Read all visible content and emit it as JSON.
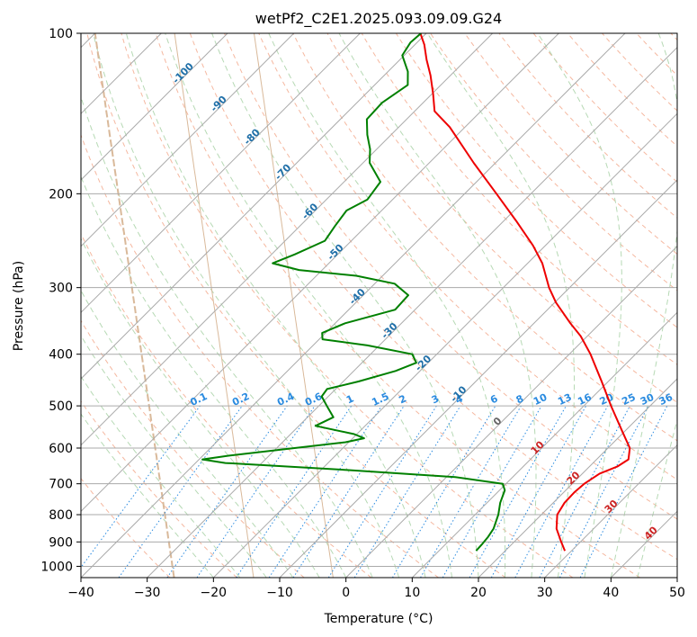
{
  "chart_data": {
    "type": "line",
    "subtype": "skew-t log-p diagram",
    "title": "wetPf2_C2E1.2025.093.09.09.G24",
    "xlabel": "Temperature (°C)",
    "ylabel": "Pressure (hPa)",
    "xlim": [
      -40,
      50
    ],
    "ylim": [
      1050,
      100
    ],
    "y_scale": "log",
    "x_ticks": [
      "−40",
      "−30",
      "−20",
      "−10",
      "0",
      "10",
      "20",
      "30",
      "40",
      "50"
    ],
    "x_tick_values": [
      -40,
      -30,
      -20,
      -10,
      0,
      10,
      20,
      30,
      40,
      50
    ],
    "y_ticks": [
      "100",
      "200",
      "300",
      "400",
      "500",
      "600",
      "700",
      "800",
      "900",
      "1000"
    ],
    "y_tick_values": [
      100,
      200,
      300,
      400,
      500,
      600,
      700,
      800,
      900,
      1000
    ],
    "grid": true,
    "colors": {
      "temperature": "#ee0000",
      "dewpoint": "#008000",
      "isotherm": "#aaaaaa",
      "dry_adiabat": "#f5b8a0",
      "moist_adiabat": "#b6d9b4",
      "mixing_ratio": "#2a8be0",
      "saturation_curve": "#d9b99a",
      "cold_isotherm_label": "#1f6fa8",
      "warm_isotherm_label": "#cc2222"
    },
    "series": [
      {
        "role": "temperature",
        "points": [
          {
            "p": 935,
            "t": 29
          },
          {
            "p": 900,
            "t": 27.1
          },
          {
            "p": 850,
            "t": 24.4
          },
          {
            "p": 800,
            "t": 22.4
          },
          {
            "p": 760,
            "t": 21.7
          },
          {
            "p": 725,
            "t": 21.6
          },
          {
            "p": 700,
            "t": 21.8
          },
          {
            "p": 670,
            "t": 22.6
          },
          {
            "p": 650,
            "t": 24.2
          },
          {
            "p": 630,
            "t": 24.8
          },
          {
            "p": 600,
            "t": 23.3
          },
          {
            "p": 560,
            "t": 19.8
          },
          {
            "p": 500,
            "t": 14.1
          },
          {
            "p": 450,
            "t": 9.0
          },
          {
            "p": 400,
            "t": 3.2
          },
          {
            "p": 370,
            "t": -1.0
          },
          {
            "p": 350,
            "t": -4.5
          },
          {
            "p": 320,
            "t": -9.8
          },
          {
            "p": 300,
            "t": -13.1
          },
          {
            "p": 270,
            "t": -17.8
          },
          {
            "p": 250,
            "t": -21.9
          },
          {
            "p": 225,
            "t": -28.1
          },
          {
            "p": 200,
            "t": -35.2
          },
          {
            "p": 175,
            "t": -43.3
          },
          {
            "p": 150,
            "t": -52.3
          },
          {
            "p": 140,
            "t": -57.0
          },
          {
            "p": 130,
            "t": -59.8
          },
          {
            "p": 120,
            "t": -63.0
          },
          {
            "p": 112,
            "t": -66.0
          },
          {
            "p": 105,
            "t": -68.6
          },
          {
            "p": 100,
            "t": -70.9
          }
        ]
      },
      {
        "role": "dewpoint",
        "points": [
          {
            "p": 935,
            "t": 15.6
          },
          {
            "p": 910,
            "t": 15.5
          },
          {
            "p": 880,
            "t": 15.3
          },
          {
            "p": 850,
            "t": 14.9
          },
          {
            "p": 800,
            "t": 13.5
          },
          {
            "p": 760,
            "t": 12.0
          },
          {
            "p": 720,
            "t": 10.8
          },
          {
            "p": 700,
            "t": 9.5
          },
          {
            "p": 680,
            "t": 1.3
          },
          {
            "p": 660,
            "t": -15.8
          },
          {
            "p": 640,
            "t": -35.5
          },
          {
            "p": 630,
            "t": -39.5
          },
          {
            "p": 620,
            "t": -36.0
          },
          {
            "p": 600,
            "t": -27.3
          },
          {
            "p": 585,
            "t": -20.5
          },
          {
            "p": 575,
            "t": -18.3
          },
          {
            "p": 565,
            "t": -20.4
          },
          {
            "p": 545,
            "t": -27.5
          },
          {
            "p": 525,
            "t": -26.1
          },
          {
            "p": 500,
            "t": -28.8
          },
          {
            "p": 480,
            "t": -31.0
          },
          {
            "p": 465,
            "t": -31.3
          },
          {
            "p": 450,
            "t": -27.7
          },
          {
            "p": 430,
            "t": -23.7
          },
          {
            "p": 415,
            "t": -21.8
          },
          {
            "p": 400,
            "t": -23.7
          },
          {
            "p": 385,
            "t": -31.8
          },
          {
            "p": 375,
            "t": -39.5
          },
          {
            "p": 365,
            "t": -40.5
          },
          {
            "p": 350,
            "t": -38.5
          },
          {
            "p": 330,
            "t": -33.0
          },
          {
            "p": 310,
            "t": -33.2
          },
          {
            "p": 295,
            "t": -37.0
          },
          {
            "p": 285,
            "t": -44.0
          },
          {
            "p": 278,
            "t": -53.5
          },
          {
            "p": 270,
            "t": -58.5
          },
          {
            "p": 260,
            "t": -56.5
          },
          {
            "p": 245,
            "t": -54.0
          },
          {
            "p": 230,
            "t": -54.7
          },
          {
            "p": 215,
            "t": -55.3
          },
          {
            "p": 205,
            "t": -53.8
          },
          {
            "p": 190,
            "t": -54.5
          },
          {
            "p": 175,
            "t": -59.0
          },
          {
            "p": 165,
            "t": -61.0
          },
          {
            "p": 155,
            "t": -63.6
          },
          {
            "p": 145,
            "t": -66.0
          },
          {
            "p": 135,
            "t": -66.2
          },
          {
            "p": 125,
            "t": -65.0
          },
          {
            "p": 118,
            "t": -67.0
          },
          {
            "p": 110,
            "t": -70.3
          },
          {
            "p": 104,
            "t": -71.0
          },
          {
            "p": 100,
            "t": -70.8
          }
        ]
      }
    ],
    "isotherm_labels": [
      {
        "text": "-100",
        "t": -100,
        "p": 120
      },
      {
        "text": "-90",
        "t": -90,
        "p": 137
      },
      {
        "text": "-80",
        "t": -80,
        "p": 158
      },
      {
        "text": "-70",
        "t": -70,
        "p": 184
      },
      {
        "text": "-60",
        "t": -60,
        "p": 218
      },
      {
        "text": "-50",
        "t": -50,
        "p": 260
      },
      {
        "text": "-40",
        "t": -40,
        "p": 315
      },
      {
        "text": "-30",
        "t": -30,
        "p": 365
      },
      {
        "text": "-20",
        "t": -20,
        "p": 420
      },
      {
        "text": "-10",
        "t": -10,
        "p": 480
      },
      {
        "text": "0",
        "t": 0,
        "p": 540
      },
      {
        "text": "10",
        "t": 10,
        "p": 605
      },
      {
        "text": "20",
        "t": 20,
        "p": 690
      },
      {
        "text": "30",
        "t": 30,
        "p": 780
      },
      {
        "text": "40",
        "t": 40,
        "p": 875
      }
    ],
    "mixing_ratio_labels": [
      "0.1",
      "0.2",
      "0.4",
      "0.6",
      "1",
      "1.5",
      "2",
      "3",
      "4",
      "6",
      "8",
      "10",
      "13",
      "16",
      "20",
      "25",
      "30",
      "36"
    ],
    "mixing_ratio_values": [
      0.1,
      0.2,
      0.4,
      0.6,
      1,
      1.5,
      2,
      3,
      4,
      6,
      8,
      10,
      13,
      16,
      20,
      25,
      30,
      36
    ],
    "mixing_ratio_label_pressure": 500
  }
}
